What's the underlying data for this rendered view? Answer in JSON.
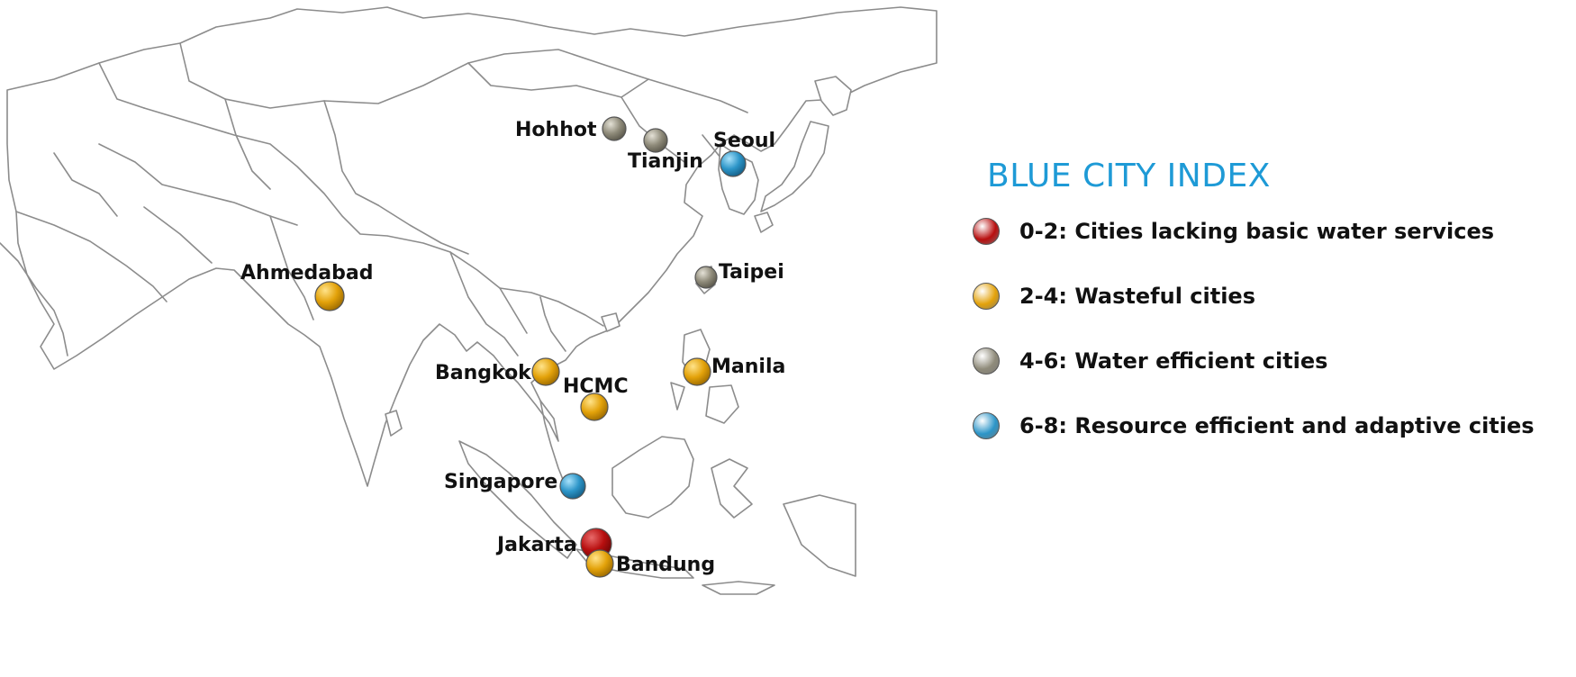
{
  "legend": {
    "title": "BLUE CITY INDEX",
    "items": [
      {
        "label": "0-2: Cities lacking basic water services",
        "color": "#b80f0f"
      },
      {
        "label": "2-4: Wasteful cities",
        "color": "#e3a20a"
      },
      {
        "label": "4-6: Water efficient cities",
        "color": "#8f8b7a"
      },
      {
        "label": "6-8: Resource efficient and adaptive cities",
        "color": "#2c95c8"
      }
    ]
  },
  "cities": [
    {
      "name": "Hohhot",
      "category": 2
    },
    {
      "name": "Tianjin",
      "category": 2
    },
    {
      "name": "Seoul",
      "category": 3
    },
    {
      "name": "Taipei",
      "category": 2
    },
    {
      "name": "Ahmedabad",
      "category": 1
    },
    {
      "name": "Bangkok",
      "category": 1
    },
    {
      "name": "HCMC",
      "category": 1
    },
    {
      "name": "Manila",
      "category": 1
    },
    {
      "name": "Singapore",
      "category": 3
    },
    {
      "name": "Jakarta",
      "category": 0
    },
    {
      "name": "Bandung",
      "category": 1
    }
  ]
}
